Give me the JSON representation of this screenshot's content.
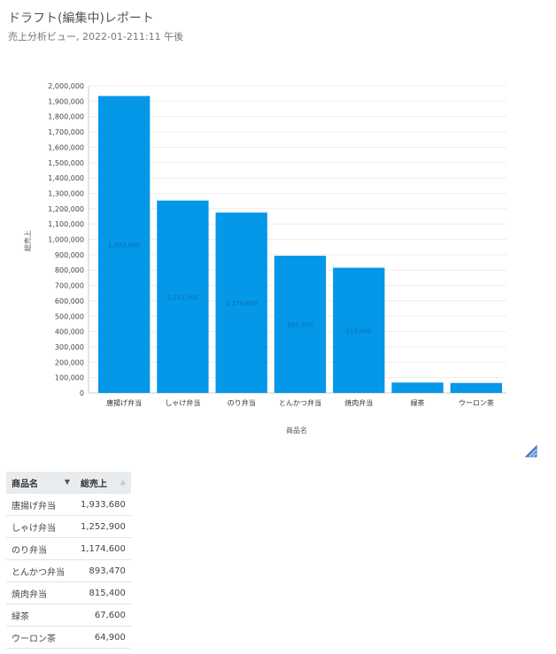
{
  "header": {
    "title": "ドラフト(編集中)レポート",
    "subtitle": "売上分析ビュー, 2022-01-211:11 午後"
  },
  "chart_data": {
    "type": "bar",
    "categories": [
      "唐揚げ弁当",
      "しゃけ弁当",
      "のり弁当",
      "とんかつ弁当",
      "焼肉弁当",
      "緑茶",
      "ウーロン茶"
    ],
    "values": [
      1933680,
      1252900,
      1174600,
      893470,
      815400,
      67600,
      64900
    ],
    "data_labels": [
      "1,933,680",
      "1,252,900",
      "1,174,600",
      "893,470",
      "815,400",
      "",
      ""
    ],
    "xlabel": "商品名",
    "ylabel": "総売上",
    "ylim": [
      0,
      2000000
    ],
    "ytick_step": 100000,
    "grid": true,
    "colors": {
      "bar": "#0597e8",
      "grid": "#eeeeee",
      "axis": "#cccccc"
    }
  },
  "table": {
    "headers": [
      "商品名",
      "総売上"
    ],
    "rows": [
      [
        "唐揚げ弁当",
        "1,933,680"
      ],
      [
        "しゃけ弁当",
        "1,252,900"
      ],
      [
        "のり弁当",
        "1,174,600"
      ],
      [
        "とんかつ弁当",
        "893,470"
      ],
      [
        "焼肉弁当",
        "815,400"
      ],
      [
        "緑茶",
        "67,600"
      ],
      [
        "ウーロン茶",
        "64,900"
      ]
    ]
  },
  "icons": {
    "resize": "resize-corner-icon",
    "sort_desc": "sort-desc-icon",
    "sort_asc": "sort-asc-icon"
  }
}
